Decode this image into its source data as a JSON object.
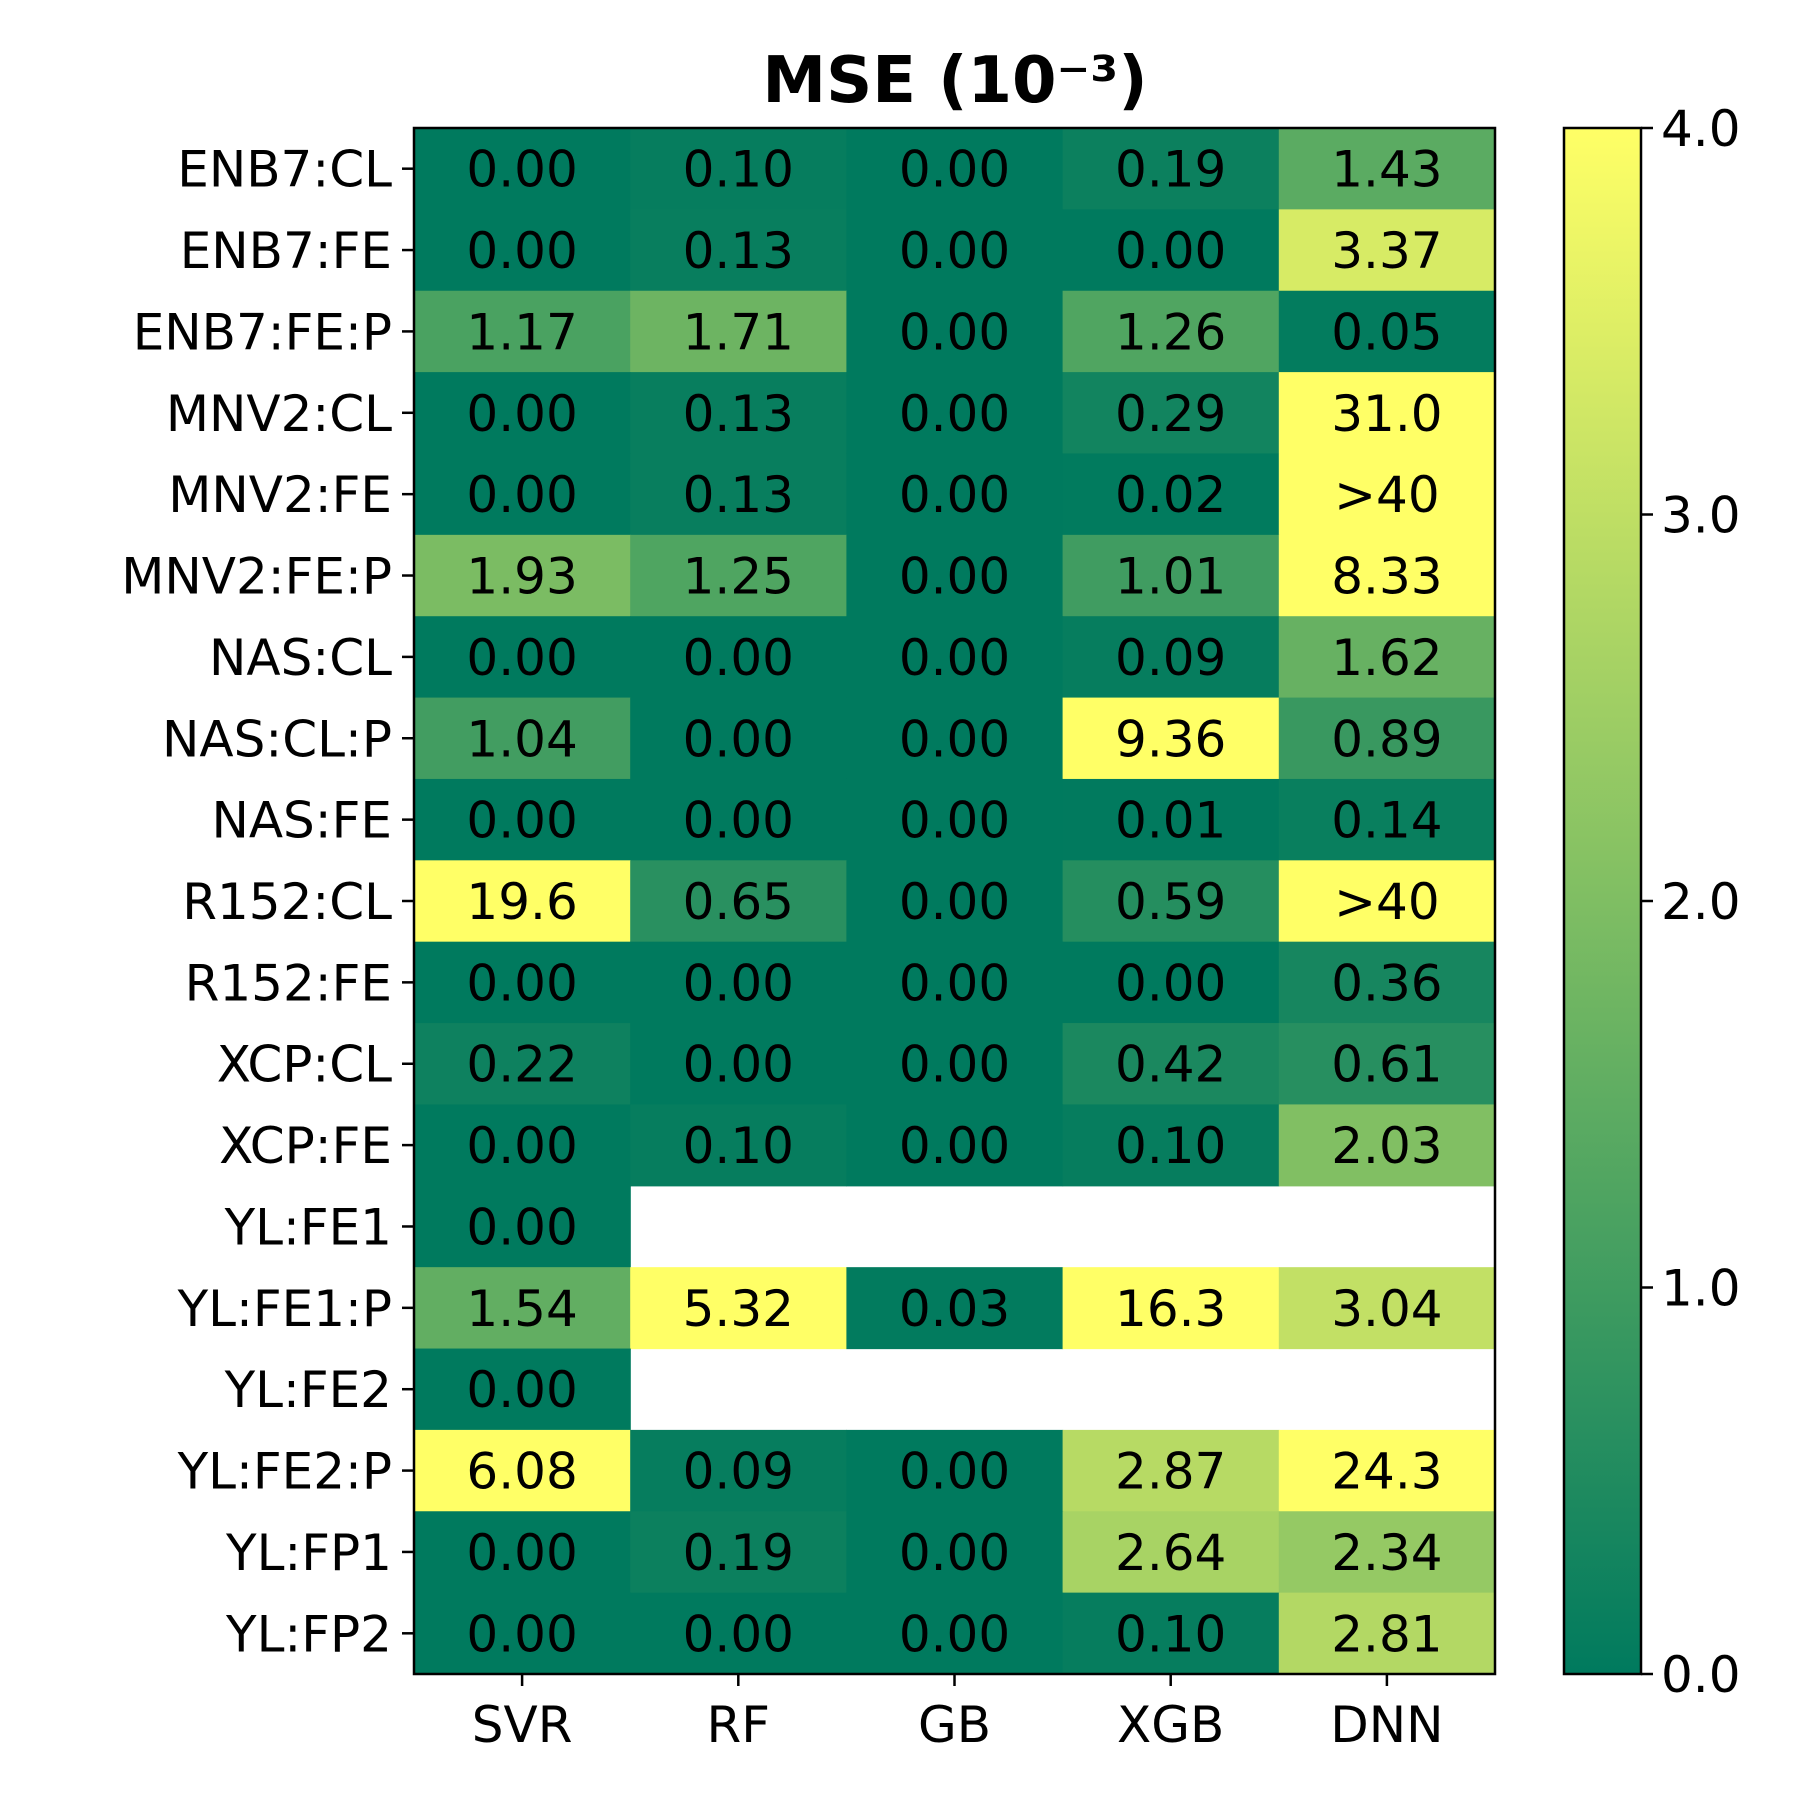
{
  "chart_data": {
    "type": "heatmap",
    "title": "MSE (10⁻³)",
    "xlabel": "",
    "ylabel": "",
    "columns": [
      "SVR",
      "RF",
      "GB",
      "XGB",
      "DNN"
    ],
    "rows": [
      "ENB7:CL",
      "ENB7:FE",
      "ENB7:FE:P",
      "MNV2:CL",
      "MNV2:FE",
      "MNV2:FE:P",
      "NAS:CL",
      "NAS:CL:P",
      "NAS:FE",
      "R152:CL",
      "R152:FE",
      "XCP:CL",
      "XCP:FE",
      "YL:FE1",
      "YL:FE1:P",
      "YL:FE2",
      "YL:FE2:P",
      "YL:FP1",
      "YL:FP2"
    ],
    "values": [
      [
        0.0,
        0.1,
        0.0,
        0.19,
        1.43
      ],
      [
        0.0,
        0.13,
        0.0,
        0.0,
        3.37
      ],
      [
        1.17,
        1.71,
        0.0,
        1.26,
        0.05
      ],
      [
        0.0,
        0.13,
        0.0,
        0.29,
        31.0
      ],
      [
        0.0,
        0.13,
        0.0,
        0.02,
        40.0
      ],
      [
        1.93,
        1.25,
        0.0,
        1.01,
        8.33
      ],
      [
        0.0,
        0.0,
        0.0,
        0.09,
        1.62
      ],
      [
        1.04,
        0.0,
        0.0,
        9.36,
        0.89
      ],
      [
        0.0,
        0.0,
        0.0,
        0.01,
        0.14
      ],
      [
        19.6,
        0.65,
        0.0,
        0.59,
        40.0
      ],
      [
        0.0,
        0.0,
        0.0,
        0.0,
        0.36
      ],
      [
        0.22,
        0.0,
        0.0,
        0.42,
        0.61
      ],
      [
        0.0,
        0.1,
        0.0,
        0.1,
        2.03
      ],
      [
        0.0,
        null,
        null,
        null,
        null
      ],
      [
        1.54,
        5.32,
        0.03,
        16.3,
        3.04
      ],
      [
        0.0,
        null,
        null,
        null,
        null
      ],
      [
        6.08,
        0.09,
        0.0,
        2.87,
        24.3
      ],
      [
        0.0,
        0.19,
        0.0,
        2.64,
        2.34
      ],
      [
        0.0,
        0.0,
        0.0,
        0.1,
        2.81
      ]
    ],
    "labels": [
      [
        "0.00",
        "0.10",
        "0.00",
        "0.19",
        "1.43"
      ],
      [
        "0.00",
        "0.13",
        "0.00",
        "0.00",
        "3.37"
      ],
      [
        "1.17",
        "1.71",
        "0.00",
        "1.26",
        "0.05"
      ],
      [
        "0.00",
        "0.13",
        "0.00",
        "0.29",
        "31.0"
      ],
      [
        "0.00",
        "0.13",
        "0.00",
        "0.02",
        ">40"
      ],
      [
        "1.93",
        "1.25",
        "0.00",
        "1.01",
        "8.33"
      ],
      [
        "0.00",
        "0.00",
        "0.00",
        "0.09",
        "1.62"
      ],
      [
        "1.04",
        "0.00",
        "0.00",
        "9.36",
        "0.89"
      ],
      [
        "0.00",
        "0.00",
        "0.00",
        "0.01",
        "0.14"
      ],
      [
        "19.6",
        "0.65",
        "0.00",
        "0.59",
        ">40"
      ],
      [
        "0.00",
        "0.00",
        "0.00",
        "0.00",
        "0.36"
      ],
      [
        "0.22",
        "0.00",
        "0.00",
        "0.42",
        "0.61"
      ],
      [
        "0.00",
        "0.10",
        "0.00",
        "0.10",
        "2.03"
      ],
      [
        "0.00",
        "",
        "",
        "",
        ""
      ],
      [
        "1.54",
        "5.32",
        "0.03",
        "16.3",
        "3.04"
      ],
      [
        "0.00",
        "",
        "",
        "",
        ""
      ],
      [
        "6.08",
        "0.09",
        "0.00",
        "2.87",
        "24.3"
      ],
      [
        "0.00",
        "0.19",
        "0.00",
        "2.64",
        "2.34"
      ],
      [
        "0.00",
        "0.00",
        "0.00",
        "0.10",
        "2.81"
      ]
    ],
    "colorbar": {
      "vmin": 0.0,
      "vmax": 4.0,
      "ticks": [
        0.0,
        1.0,
        2.0,
        3.0,
        4.0
      ],
      "tick_labels": [
        "0.0",
        "1.0",
        "2.0",
        "3.0",
        "4.0"
      ],
      "color_low": "#007a5e",
      "color_mid": "#7fbe63",
      "color_high": "#ffff66",
      "placement": "right"
    },
    "grid": false
  }
}
